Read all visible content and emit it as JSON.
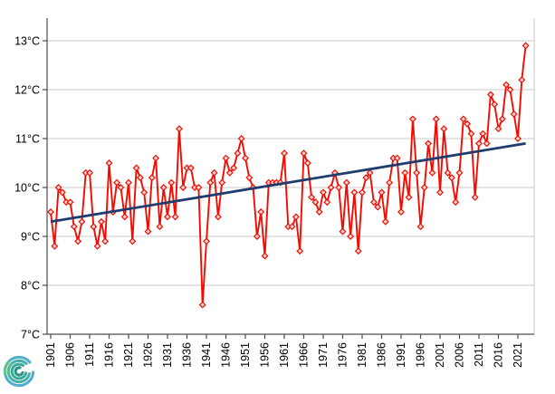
{
  "chart_data": {
    "type": "line",
    "title": "",
    "ylim": [
      7,
      13
    ],
    "grid": "horizontal",
    "legend": "none",
    "y_ticks": [
      {
        "value": 7,
        "label": "7°C"
      },
      {
        "value": 8,
        "label": "8°C"
      },
      {
        "value": 9,
        "label": "9°C"
      },
      {
        "value": 10,
        "label": "10°C"
      },
      {
        "value": 11,
        "label": "11°C"
      },
      {
        "value": 12,
        "label": "12°C"
      },
      {
        "value": 13,
        "label": "13°C"
      }
    ],
    "x_tick_years": [
      1901,
      1906,
      1911,
      1916,
      1921,
      1926,
      1931,
      1936,
      1941,
      1946,
      1951,
      1956,
      1961,
      1966,
      1971,
      1976,
      1981,
      1986,
      1991,
      1996,
      2001,
      2006,
      2011,
      2016,
      2021
    ],
    "years": [
      1901,
      1902,
      1903,
      1904,
      1905,
      1906,
      1907,
      1908,
      1909,
      1910,
      1911,
      1912,
      1913,
      1914,
      1915,
      1916,
      1917,
      1918,
      1919,
      1920,
      1921,
      1922,
      1923,
      1924,
      1925,
      1926,
      1927,
      1928,
      1929,
      1930,
      1931,
      1932,
      1933,
      1934,
      1935,
      1936,
      1937,
      1938,
      1939,
      1940,
      1941,
      1942,
      1943,
      1944,
      1945,
      1946,
      1947,
      1948,
      1949,
      1950,
      1951,
      1952,
      1953,
      1954,
      1955,
      1956,
      1957,
      1958,
      1959,
      1960,
      1961,
      1962,
      1963,
      1964,
      1965,
      1966,
      1967,
      1968,
      1969,
      1970,
      1971,
      1972,
      1973,
      1974,
      1975,
      1976,
      1977,
      1978,
      1979,
      1980,
      1981,
      1982,
      1983,
      1984,
      1985,
      1986,
      1987,
      1988,
      1989,
      1990,
      1991,
      1992,
      1993,
      1994,
      1995,
      1996,
      1997,
      1998,
      1999,
      2000,
      2001,
      2002,
      2003,
      2004,
      2005,
      2006,
      2007,
      2008,
      2009,
      2010,
      2011,
      2012,
      2013,
      2014,
      2015,
      2016,
      2017,
      2018,
      2019,
      2020,
      2021,
      2022,
      2023
    ],
    "series": [
      {
        "name": "annual-mean-temperature",
        "marker": "diamond",
        "values": [
          9.5,
          8.8,
          10.0,
          9.9,
          9.7,
          9.7,
          9.2,
          8.9,
          9.3,
          10.3,
          10.3,
          9.2,
          8.8,
          9.3,
          8.9,
          10.5,
          9.5,
          10.1,
          10.0,
          9.4,
          10.1,
          8.9,
          10.4,
          10.2,
          9.9,
          9.1,
          10.2,
          10.6,
          9.2,
          10.0,
          9.4,
          10.1,
          9.4,
          11.2,
          10.0,
          10.4,
          10.4,
          10.0,
          10.0,
          7.6,
          8.9,
          10.1,
          10.3,
          9.4,
          10.1,
          10.6,
          10.3,
          10.4,
          10.7,
          11.0,
          10.6,
          10.2,
          10.0,
          9.0,
          9.5,
          8.6,
          10.1,
          10.1,
          10.1,
          10.1,
          10.7,
          9.2,
          9.2,
          9.4,
          8.7,
          10.7,
          10.5,
          9.8,
          9.7,
          9.5,
          9.9,
          9.7,
          10.0,
          10.3,
          10.0,
          9.1,
          10.1,
          9.0,
          9.9,
          8.7,
          9.9,
          10.2,
          10.3,
          9.7,
          9.6,
          9.9,
          9.3,
          10.1,
          10.6,
          10.6,
          9.5,
          10.3,
          9.8,
          11.4,
          10.3,
          9.2,
          10.0,
          10.9,
          10.3,
          11.4,
          9.9,
          11.2,
          10.3,
          10.2,
          9.7,
          10.3,
          11.4,
          11.3,
          11.1,
          9.8,
          10.9,
          11.1,
          10.9,
          11.9,
          11.7,
          11.2,
          11.4,
          12.1,
          12.0,
          11.5,
          11.0,
          12.2,
          12.9
        ]
      }
    ],
    "trend": {
      "name": "linear-trend",
      "start_value": 9.3,
      "end_value": 10.9
    }
  },
  "colors": {
    "series": "#f40b00",
    "marker_fill": "#fcdad6",
    "trend": "#1f3c6e",
    "gridline": "#c9c9c9",
    "axis": "#4d4d4d",
    "text": "#000000",
    "logo": [
      "#67c08b",
      "#4faecc",
      "#3fafa3",
      "#2e9387"
    ]
  },
  "logo": {
    "name": "geosphere-spiral-logo"
  }
}
